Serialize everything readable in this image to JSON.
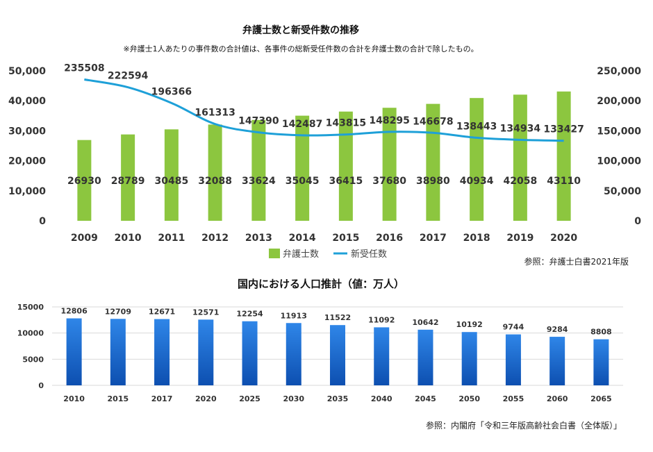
{
  "chart_data": [
    {
      "type": "bar",
      "title": "弁護士数と新受件数の推移",
      "subtitle": "※弁護士1人あたりの事件数の合計値は、各事件の総新受任件数の合計を弁護士数の合計で除したもの。",
      "categories": [
        "2009",
        "2010",
        "2011",
        "2012",
        "2013",
        "2014",
        "2015",
        "2016",
        "2017",
        "2018",
        "2019",
        "2020"
      ],
      "series": [
        {
          "name": "弁護士数",
          "type": "bar",
          "axis": "left",
          "color": "#8cc63f",
          "values": [
            26930,
            28789,
            30485,
            32088,
            33624,
            35045,
            36415,
            37680,
            38980,
            40934,
            42058,
            43110
          ]
        },
        {
          "name": "新受任数",
          "type": "line",
          "axis": "right",
          "color": "#1ea0d8",
          "values": [
            235508,
            222594,
            196366,
            161313,
            147390,
            142487,
            143815,
            148295,
            146678,
            138443,
            134934,
            133427
          ]
        }
      ],
      "ylim_left": [
        0,
        50000
      ],
      "ylim_right": [
        0,
        250000
      ],
      "yticks_left": [
        "0",
        "10,000",
        "20,000",
        "30,000",
        "40,000",
        "50,000"
      ],
      "yticks_right": [
        "0",
        "50,000",
        "100,000",
        "150,000",
        "200,000",
        "250,000"
      ],
      "legend_position": "bottom",
      "source": "参照：弁護士白書2021年版"
    },
    {
      "type": "bar",
      "title": "国内における人口推計（値：万人）",
      "categories": [
        "2010",
        "2015",
        "2017",
        "2020",
        "2025",
        "2030",
        "2035",
        "2040",
        "2045",
        "2050",
        "2055",
        "2060",
        "2065"
      ],
      "series": [
        {
          "color": "#1a6fd6",
          "values": [
            12806,
            12709,
            12671,
            12571,
            12254,
            11913,
            11522,
            11092,
            10642,
            10192,
            9744,
            9284,
            8808
          ]
        }
      ],
      "ylim": [
        0,
        15000
      ],
      "yticks": [
        "0",
        "5000",
        "10000",
        "15000"
      ],
      "grid": true,
      "source": "参照：内閣府「令和三年版高齢社会白書（全体版）」"
    }
  ]
}
